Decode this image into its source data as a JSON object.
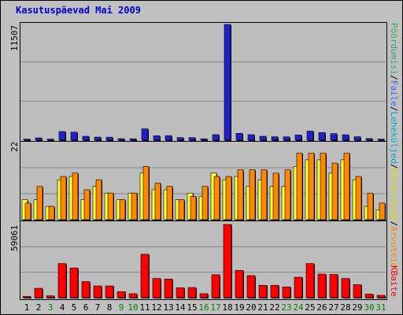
{
  "title": "Kasutuspäevad Mai 2009",
  "chart_data": [
    {
      "type": "bar",
      "panel": "top",
      "ymax_label": "11507",
      "ylim": [
        0,
        11507
      ],
      "x": [
        "1",
        "2",
        "3",
        "4",
        "5",
        "6",
        "7",
        "8",
        "9",
        "10",
        "11",
        "12",
        "13",
        "14",
        "15",
        "16",
        "17",
        "18",
        "19",
        "20",
        "21",
        "22",
        "23",
        "24",
        "25",
        "26",
        "27",
        "28",
        "29",
        "30",
        "31"
      ],
      "series": [
        {
          "name": "Leheküljed",
          "color": "#2020cc",
          "values": [
            110,
            230,
            110,
            860,
            800,
            390,
            310,
            300,
            150,
            140,
            1130,
            440,
            450,
            260,
            260,
            140,
            550,
            11507,
            680,
            550,
            390,
            340,
            330,
            520,
            900,
            760,
            650,
            540,
            340,
            170,
            110
          ]
        }
      ]
    },
    {
      "type": "bar",
      "panel": "middle",
      "ymax_label": "22",
      "ylim": [
        0,
        22
      ],
      "x": [
        "1",
        "2",
        "3",
        "4",
        "5",
        "6",
        "7",
        "8",
        "9",
        "10",
        "11",
        "12",
        "13",
        "14",
        "15",
        "16",
        "17",
        "18",
        "19",
        "20",
        "21",
        "22",
        "23",
        "24",
        "25",
        "26",
        "27",
        "28",
        "29",
        "30",
        "31"
      ],
      "series": [
        {
          "name": "Külastajad",
          "color": "#ffff33",
          "values": [
            6,
            6,
            4,
            12,
            13,
            6,
            10,
            8,
            6,
            8,
            14,
            9,
            9,
            6,
            8,
            7,
            14,
            12,
            13,
            10,
            12,
            10,
            10,
            16,
            18,
            18,
            14,
            18,
            12,
            4,
            3
          ]
        },
        {
          "name": "Arvuteid",
          "color": "#ff8800",
          "values": [
            5,
            10,
            4,
            13,
            14,
            9,
            12,
            8,
            6,
            8,
            16,
            11,
            10,
            6,
            7,
            10,
            13,
            13,
            15,
            15,
            15,
            14,
            15,
            20,
            20,
            20,
            17,
            20,
            13,
            8,
            5
          ]
        }
      ]
    },
    {
      "type": "bar",
      "panel": "bottom",
      "ymax_label": "59061",
      "ylim": [
        0,
        59061
      ],
      "x": [
        "1",
        "2",
        "3",
        "4",
        "5",
        "6",
        "7",
        "8",
        "9",
        "10",
        "11",
        "12",
        "13",
        "14",
        "15",
        "16",
        "17",
        "18",
        "19",
        "20",
        "21",
        "22",
        "23",
        "24",
        "25",
        "26",
        "27",
        "28",
        "29",
        "30",
        "31"
      ],
      "series": [
        {
          "name": "KBaite",
          "color": "#ff0000",
          "values": [
            1000,
            7600,
            1500,
            27500,
            24000,
            13000,
            9500,
            9500,
            4900,
            3200,
            35000,
            15500,
            15000,
            8000,
            8200,
            3200,
            18500,
            59061,
            22000,
            17800,
            10000,
            10000,
            8700,
            16500,
            27500,
            19000,
            18700,
            15500,
            10500,
            2900,
            1900
          ]
        }
      ]
    }
  ],
  "x_tick_colors": [
    "#000000",
    "#000000",
    "#008000",
    "#000000",
    "#000000",
    "#000000",
    "#000000",
    "#000000",
    "#008000",
    "#008000",
    "#000000",
    "#000000",
    "#000000",
    "#000000",
    "#000000",
    "#008000",
    "#008000",
    "#000000",
    "#000000",
    "#000000",
    "#000000",
    "#000000",
    "#008000",
    "#008000",
    "#000000",
    "#000000",
    "#000000",
    "#000000",
    "#000000",
    "#008000",
    "#008000"
  ],
  "legend": {
    "upper": [
      {
        "label": "Pöördumisi",
        "color": "#33aa66"
      },
      {
        "label": "/",
        "color": "#000000"
      },
      {
        "label": "Faile",
        "color": "#3366ff"
      },
      {
        "label": "/",
        "color": "#000000"
      },
      {
        "label": "Leheküljed",
        "color": "#00aacc"
      },
      {
        "label": "/",
        "color": "#000000"
      },
      {
        "label": "Külastajad",
        "color": "#dddd00"
      },
      {
        "label": "/",
        "color": "#000000"
      },
      {
        "label": "Arvuteid",
        "color": "#ff8800"
      }
    ],
    "lower": [
      {
        "label": "KBaite",
        "color": "#ff0000"
      }
    ]
  }
}
